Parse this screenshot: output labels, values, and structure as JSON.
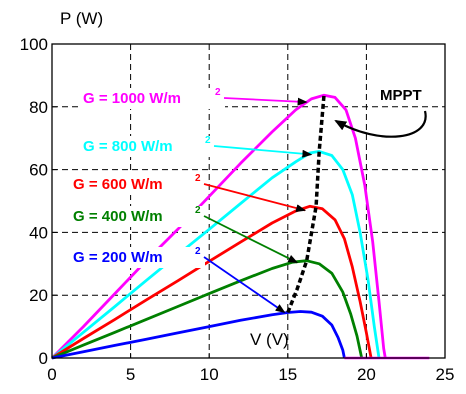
{
  "chart_data": {
    "type": "line",
    "ylabel": "P (W)",
    "xlabel": "V (V)",
    "xlim": [
      0,
      25
    ],
    "ylim": [
      0,
      100
    ],
    "xticks": [
      0,
      5,
      10,
      15,
      20,
      25
    ],
    "yticks": [
      0,
      20,
      40,
      60,
      80,
      100
    ],
    "grid": true,
    "series": [
      {
        "name": "G = 1000 W/m",
        "superscript": "2",
        "color": "#ff00ff",
        "points": [
          [
            0,
            0
          ],
          [
            2,
            10
          ],
          [
            4,
            20.5
          ],
          [
            6,
            31
          ],
          [
            8,
            41
          ],
          [
            10,
            51.5
          ],
          [
            12,
            62
          ],
          [
            14,
            72
          ],
          [
            15.5,
            79
          ],
          [
            16.5,
            82.5
          ],
          [
            17.3,
            83.7
          ],
          [
            18,
            83
          ],
          [
            18.7,
            79
          ],
          [
            19.3,
            70
          ],
          [
            19.9,
            55
          ],
          [
            20.4,
            37
          ],
          [
            20.8,
            18
          ],
          [
            21.1,
            3
          ],
          [
            21.2,
            0
          ]
        ]
      },
      {
        "name": "G = 800 W/m",
        "superscript": "2",
        "color": "#00ffff",
        "points": [
          [
            0,
            0
          ],
          [
            2,
            8.2
          ],
          [
            4,
            16.4
          ],
          [
            6,
            24.7
          ],
          [
            8,
            32.9
          ],
          [
            10,
            41
          ],
          [
            12,
            49.2
          ],
          [
            14,
            57.4
          ],
          [
            15.5,
            62.5
          ],
          [
            16.4,
            65.3
          ],
          [
            17,
            65.8
          ],
          [
            17.8,
            64.5
          ],
          [
            18.5,
            60
          ],
          [
            19.1,
            52
          ],
          [
            19.6,
            40
          ],
          [
            20.1,
            25
          ],
          [
            20.5,
            10
          ],
          [
            20.8,
            0
          ]
        ]
      },
      {
        "name": "G = 600 W/m",
        "superscript": "2",
        "color": "#ff0000",
        "points": [
          [
            0,
            0
          ],
          [
            2,
            6.2
          ],
          [
            4,
            12.3
          ],
          [
            6,
            18.5
          ],
          [
            8,
            24.6
          ],
          [
            10,
            30.8
          ],
          [
            12,
            36.9
          ],
          [
            14,
            43
          ],
          [
            15.5,
            46.8
          ],
          [
            16.4,
            48.3
          ],
          [
            17.2,
            47.5
          ],
          [
            18,
            44
          ],
          [
            18.6,
            38
          ],
          [
            19.1,
            29
          ],
          [
            19.6,
            18
          ],
          [
            20,
            8
          ],
          [
            20.3,
            0
          ]
        ]
      },
      {
        "name": "G = 400 W/m",
        "superscript": "2",
        "color": "#008000",
        "points": [
          [
            0,
            0
          ],
          [
            2,
            4.1
          ],
          [
            4,
            8.2
          ],
          [
            6,
            12.3
          ],
          [
            8,
            16.4
          ],
          [
            10,
            20.5
          ],
          [
            12,
            24.6
          ],
          [
            14,
            28.5
          ],
          [
            15.3,
            30.5
          ],
          [
            16.2,
            31
          ],
          [
            17,
            30
          ],
          [
            17.8,
            27
          ],
          [
            18.5,
            21
          ],
          [
            19,
            14
          ],
          [
            19.4,
            7
          ],
          [
            19.7,
            0
          ]
        ]
      },
      {
        "name": "G = 200 W/m",
        "superscript": "2",
        "color": "#0000ff",
        "points": [
          [
            0,
            0
          ],
          [
            2,
            2
          ],
          [
            4,
            4
          ],
          [
            6,
            6
          ],
          [
            8,
            8
          ],
          [
            10,
            10
          ],
          [
            12,
            12
          ],
          [
            14,
            13.8
          ],
          [
            15,
            14.5
          ],
          [
            15.8,
            14.8
          ],
          [
            16.5,
            14.6
          ],
          [
            17.2,
            13.3
          ],
          [
            17.8,
            10.5
          ],
          [
            18.2,
            6.5
          ],
          [
            18.5,
            2.5
          ],
          [
            18.6,
            0
          ]
        ]
      }
    ],
    "mpp_line": {
      "color": "#000000",
      "points": [
        [
          15.0,
          14.5
        ],
        [
          15.6,
          22
        ],
        [
          16.2,
          31
        ],
        [
          16.8,
          48.3
        ],
        [
          17.0,
          65.8
        ],
        [
          17.3,
          83.7
        ]
      ]
    },
    "annotations": [
      {
        "text": "MPPT"
      }
    ]
  }
}
